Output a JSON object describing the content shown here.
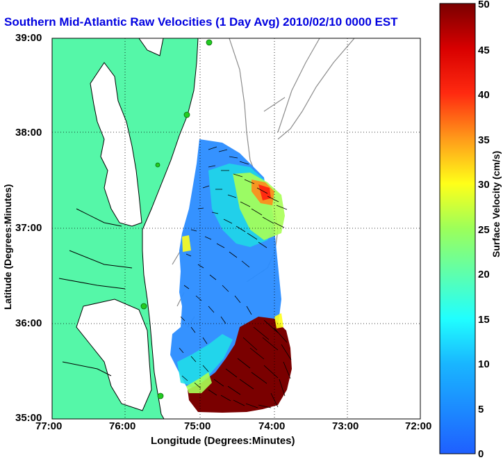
{
  "title": "Southern Mid-Atlantic Raw Velocities (1 Day Avg) 2010/02/10 0000 EST",
  "x_axis": {
    "label": "Longitude (Degrees:Minutes)",
    "ticks": [
      "77:00",
      "76:00",
      "75:00",
      "74:00",
      "73:00",
      "72:00"
    ]
  },
  "y_axis": {
    "label": "Latitude (Degrees:Minutes)",
    "ticks": [
      "39:00",
      "38:00",
      "37:00",
      "36:00",
      "35:00"
    ]
  },
  "colorbar": {
    "label": "Surface Velocity (cm/s)",
    "ticks": [
      "0",
      "5",
      "10",
      "15",
      "20",
      "25",
      "30",
      "35",
      "40",
      "45",
      "50"
    ],
    "min": 0,
    "max": 50
  },
  "colors": {
    "land": "#55f7a8",
    "title": "#0000e0",
    "station": "#22cc22"
  },
  "map_extent": {
    "lon_range": [
      "77:00",
      "72:00"
    ],
    "lat_range": [
      "35:00",
      "39:00"
    ]
  }
}
